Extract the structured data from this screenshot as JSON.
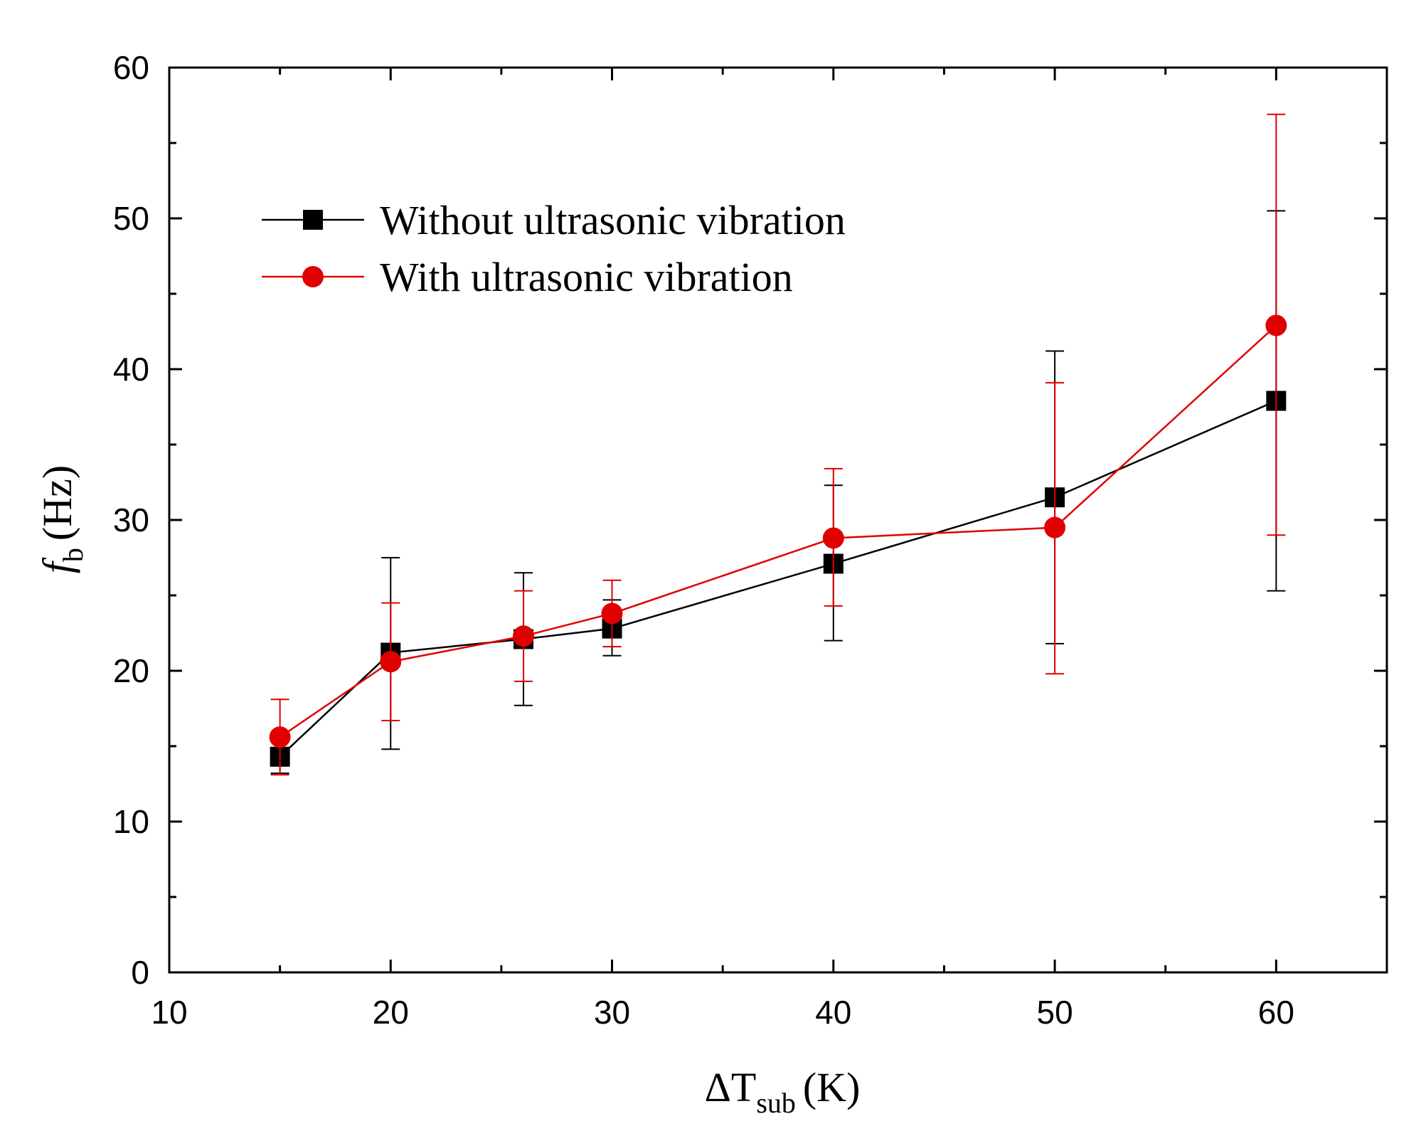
{
  "chart_data": {
    "type": "line",
    "title": "",
    "xlabel": {
      "prefix": "ΔT",
      "subscript": "sub",
      "unit": "(K)"
    },
    "ylabel": {
      "symbol": "f",
      "subscript": "b",
      "unit": "(Hz)"
    },
    "xlim": [
      10,
      65
    ],
    "ylim": [
      0,
      60
    ],
    "xticks": [
      10,
      20,
      30,
      40,
      50,
      60
    ],
    "yticks": [
      0,
      10,
      20,
      30,
      40,
      50,
      60
    ],
    "x_minor_step": 5,
    "y_minor_step": 5,
    "legend_position": "top-left",
    "series": [
      {
        "name": "Without ultrasonic vibration",
        "color": "#000000",
        "marker": "square",
        "x": [
          15,
          20,
          26,
          30,
          40,
          50,
          60
        ],
        "y": [
          14.3,
          21.2,
          22.1,
          22.8,
          27.1,
          31.5,
          37.9
        ],
        "err_low": [
          13.2,
          14.8,
          17.7,
          21.0,
          22.0,
          21.8,
          25.3
        ],
        "err_high": [
          15.4,
          27.5,
          26.5,
          24.7,
          32.3,
          41.2,
          50.5
        ]
      },
      {
        "name": "With ultrasonic vibration",
        "color": "#e00000",
        "marker": "circle",
        "x": [
          15,
          20,
          26,
          30,
          40,
          50,
          60
        ],
        "y": [
          15.6,
          20.6,
          22.3,
          23.8,
          28.8,
          29.5,
          42.9
        ],
        "err_low": [
          13.1,
          16.7,
          19.3,
          21.6,
          24.3,
          19.8,
          29.0
        ],
        "err_high": [
          18.1,
          24.5,
          25.3,
          26.0,
          33.4,
          39.1,
          56.9
        ]
      }
    ]
  }
}
